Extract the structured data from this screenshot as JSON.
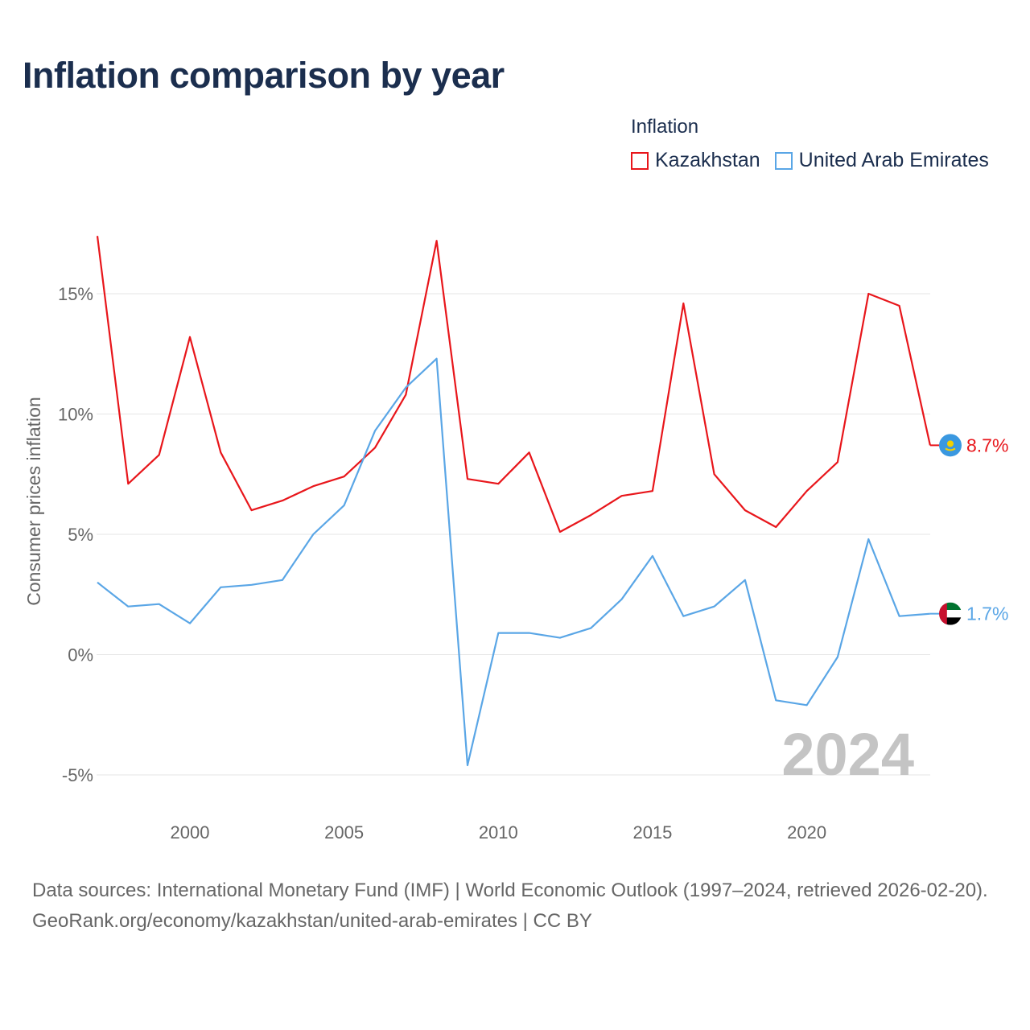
{
  "title": "Inflation comparison by year",
  "legend": {
    "title": "Inflation",
    "items": [
      {
        "label": "Kazakhstan",
        "color": "#e8161b"
      },
      {
        "label": "United Arab Emirates",
        "color": "#5aa6e6"
      }
    ]
  },
  "chart_data": {
    "type": "line",
    "title": "Inflation comparison by year",
    "ylabel": "Consumer prices inflation",
    "xlabel": "",
    "xlim": [
      1997,
      2024
    ],
    "ylim": [
      -5,
      15
    ],
    "yticks": [
      15,
      10,
      5,
      0,
      -5
    ],
    "ytick_labels": [
      "15%",
      "10%",
      "5%",
      "0%",
      "-5%"
    ],
    "xticks": [
      2000,
      2005,
      2010,
      2015,
      2020
    ],
    "xtick_labels": [
      "2000",
      "2005",
      "2010",
      "2015",
      "2020"
    ],
    "year_watermark": "2024",
    "x": [
      1997,
      1998,
      1999,
      2000,
      2001,
      2002,
      2003,
      2004,
      2005,
      2006,
      2007,
      2008,
      2009,
      2010,
      2011,
      2012,
      2013,
      2014,
      2015,
      2016,
      2017,
      2018,
      2019,
      2020,
      2021,
      2022,
      2023,
      2024
    ],
    "series": [
      {
        "name": "Kazakhstan",
        "color": "#e8161b",
        "end_label": "8.7%",
        "values": [
          17.4,
          7.1,
          8.3,
          13.2,
          8.4,
          6.0,
          6.4,
          7.0,
          7.4,
          8.6,
          10.8,
          17.2,
          7.3,
          7.1,
          8.4,
          5.1,
          5.8,
          6.6,
          6.8,
          14.6,
          7.5,
          6.0,
          5.3,
          6.8,
          8.0,
          15.0,
          14.5,
          8.7
        ]
      },
      {
        "name": "United Arab Emirates",
        "color": "#5aa6e6",
        "end_label": "1.7%",
        "values": [
          3.0,
          2.0,
          2.1,
          1.3,
          2.8,
          2.9,
          3.1,
          5.0,
          6.2,
          9.3,
          11.1,
          12.3,
          -4.6,
          0.9,
          0.9,
          0.7,
          1.1,
          2.3,
          4.1,
          1.6,
          2.0,
          3.1,
          -1.9,
          -2.1,
          -0.1,
          4.8,
          1.6,
          1.7
        ]
      }
    ]
  },
  "footer": {
    "sources": "Data sources: International Monetary Fund (IMF) | World Economic Outlook (1997–2024, retrieved 2026-02-20).",
    "credit": "GeoRank.org/economy/kazakhstan/united-arab-emirates | CC BY"
  }
}
